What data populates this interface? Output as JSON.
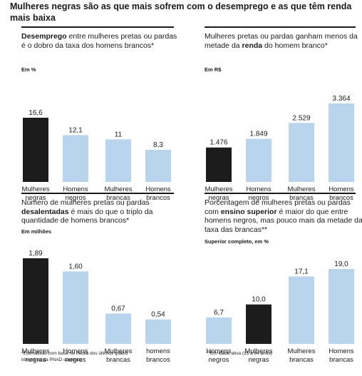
{
  "title": "Mulheres negras são as que mais sofrem com o desemprego e as que têm renda mais baixa",
  "colors": {
    "highlight": "#1c1c1c",
    "default": "#b9d5ee"
  },
  "footnotes": {
    "left": "*Estimativas com base na média dos últimos quatro trimestres da PNAD contínua",
    "right": "**Em idade ativa (15 a 64 anos)"
  },
  "chart_data": [
    {
      "type": "bar",
      "title_parts": [
        [
          "Desemprego",
          true
        ],
        [
          " entre mulheres pretas ou pardas é o dobro da taxa dos homens brancos*",
          false
        ]
      ],
      "unit": "Em %",
      "categories": [
        "Mulheres negras",
        "Homens negros",
        "Mulheres brancas",
        "Homens brancos"
      ],
      "values": [
        16.6,
        12.1,
        11,
        8.3
      ],
      "value_labels": [
        "16,6",
        "12,1",
        "11",
        "8,3"
      ],
      "highlight": [
        true,
        false,
        false,
        false
      ]
    },
    {
      "type": "bar",
      "title_parts": [
        [
          "Mulheres pretas ou pardas ganham menos da metade da ",
          false
        ],
        [
          "renda",
          true
        ],
        [
          " do homem branco*",
          false
        ]
      ],
      "unit": "Em R$",
      "categories": [
        "Mulheres negras",
        "Homens negros",
        "Mulheres brancas",
        "Homens brancos"
      ],
      "values": [
        1476,
        1849,
        2529,
        3364
      ],
      "value_labels": [
        "1.476",
        "1.849",
        "2.529",
        "3.364"
      ],
      "highlight": [
        true,
        false,
        false,
        false
      ]
    },
    {
      "type": "bar",
      "title_parts": [
        [
          "Número de mulheres pretas ou pardas ",
          false
        ],
        [
          "desalentadas",
          true
        ],
        [
          " é mais do que o triplo da quantidade de homens brancos*",
          false
        ]
      ],
      "unit": "Em milhões",
      "categories": [
        "Mulheres negras",
        "Homens negros",
        "Mulheres brancas",
        "homens brancos"
      ],
      "values": [
        1.89,
        1.6,
        0.67,
        0.54
      ],
      "value_labels": [
        "1,89",
        "1,60",
        "0,67",
        "0,54"
      ],
      "highlight": [
        true,
        false,
        false,
        false
      ]
    },
    {
      "type": "bar",
      "title_parts": [
        [
          "Porcentagem de mulheres pretas ou pardas com ",
          false
        ],
        [
          "ensino superior",
          true
        ],
        [
          " é maior do que entre homens negros, mas pouco mais da metade da taxa das brancas**",
          false
        ]
      ],
      "unit": "Superior completo, em %",
      "categories": [
        "Homens negros",
        "Mulheres negras",
        "Mulheres brancas",
        "Homens brancas"
      ],
      "values": [
        6.7,
        10.0,
        17.1,
        19.0
      ],
      "value_labels": [
        "6,7",
        "10,0",
        "17,1",
        "19,0"
      ],
      "highlight": [
        false,
        true,
        false,
        false
      ]
    }
  ]
}
